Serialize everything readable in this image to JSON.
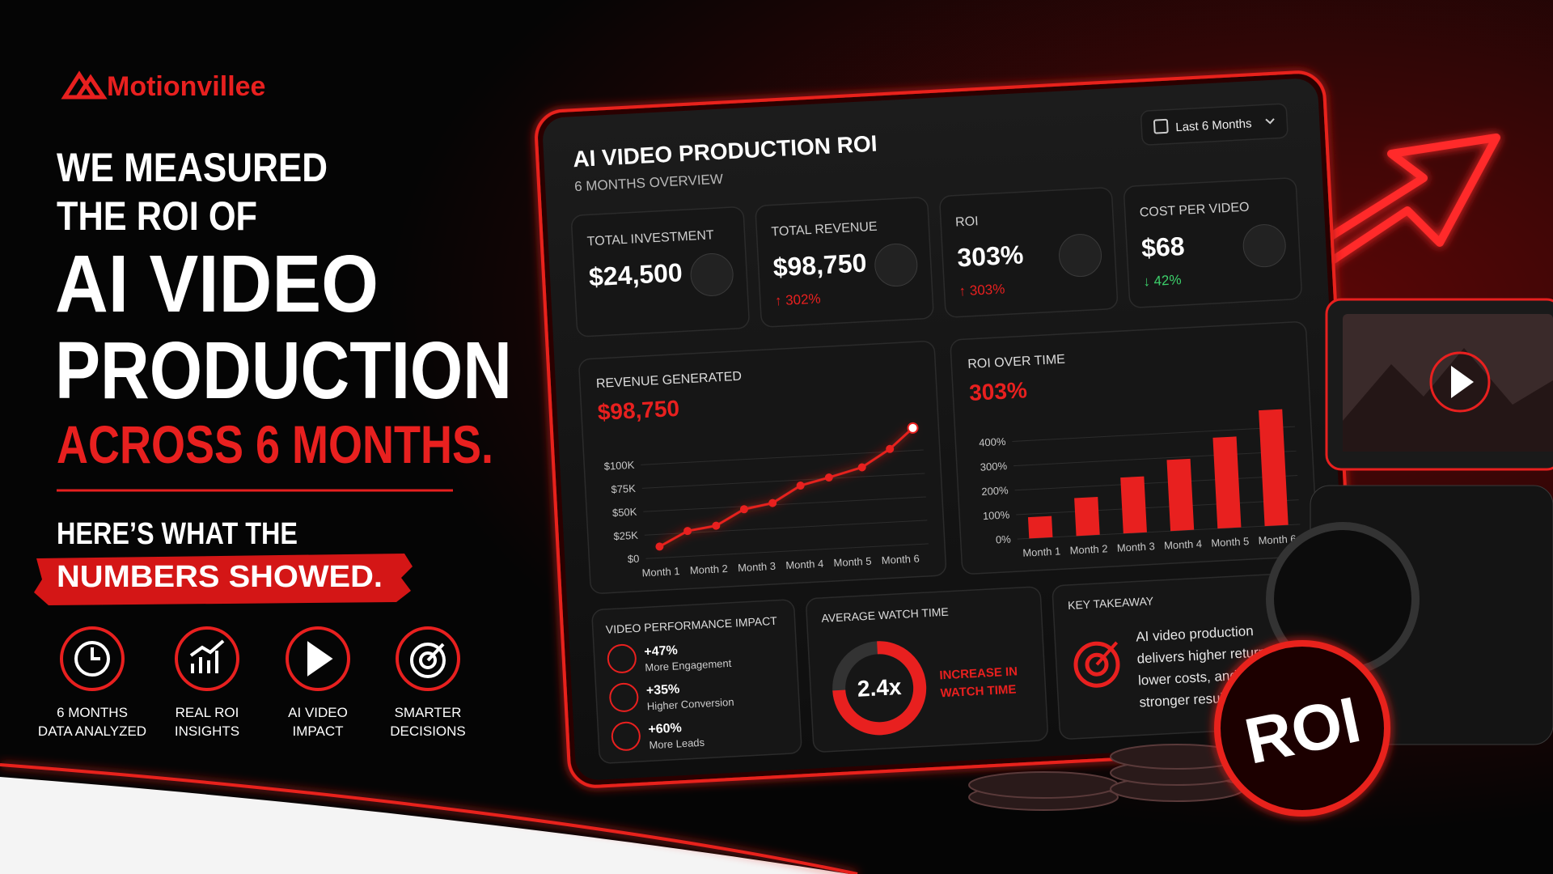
{
  "brand": "Motionvillee",
  "headline": {
    "line1": "WE MEASURED",
    "line2": "THE ROI OF",
    "line3": "AI VIDEO",
    "line4": "PRODUCTION",
    "line5": "ACROSS 6 MONTHS."
  },
  "subhead": {
    "line1": "HERE’S WHAT THE",
    "line2": "NUMBERS SHOWED."
  },
  "features": [
    {
      "line1": "6 MONTHS",
      "line2": "DATA ANALYZED"
    },
    {
      "line1": "REAL ROI",
      "line2": "INSIGHTS"
    },
    {
      "line1": "AI VIDEO",
      "line2": "IMPACT"
    },
    {
      "line1": "SMARTER",
      "line2": "DECISIONS"
    }
  ],
  "dashboard": {
    "title": "AI VIDEO PRODUCTION ROI",
    "subtitle": "6 MONTHS OVERVIEW",
    "period": "Last 6 Months",
    "kpis": [
      {
        "label": "TOTAL INVESTMENT",
        "value": "$24,500"
      },
      {
        "label": "TOTAL REVENUE",
        "value": "$98,750",
        "change": "↑ 302%"
      },
      {
        "label": "ROI",
        "value": "303%",
        "change": "↑ 303%"
      },
      {
        "label": "COST PER VIDEO",
        "value": "$68",
        "change": "↓ 42%"
      }
    ],
    "revenue_chart": {
      "type": "line",
      "title": "REVENUE GENERATED",
      "headline": "$98,750",
      "color": "#e8201f",
      "x": [
        1,
        1.6,
        2.2,
        2.8,
        3.4,
        4,
        4.6,
        5.3,
        5.9,
        6.4
      ],
      "values": [
        12000,
        27000,
        31000,
        47000,
        52000,
        69000,
        76000,
        85000,
        103000,
        124000
      ],
      "xlim": [
        0.7,
        6.6
      ],
      "xticks": [
        {
          "value": 1,
          "label": "Month 1"
        },
        {
          "value": 2,
          "label": "Month 2"
        },
        {
          "value": 3,
          "label": "Month 3"
        },
        {
          "value": 4,
          "label": "Month 4"
        },
        {
          "value": 5,
          "label": "Month 5"
        },
        {
          "value": 6,
          "label": "Month 6"
        }
      ],
      "ylim": [
        0,
        125000
      ],
      "yticks": [
        {
          "value": 0,
          "label": "$0"
        },
        {
          "value": 25000,
          "label": "$25K"
        },
        {
          "value": 50000,
          "label": "$50K"
        },
        {
          "value": 75000,
          "label": "$75K"
        },
        {
          "value": 100000,
          "label": "$100K"
        }
      ]
    },
    "roi_chart": {
      "type": "bar",
      "title": "ROI OVER TIME",
      "headline": "303%",
      "color": "#e8201f",
      "categories": [
        "Month 1",
        "Month 2",
        "Month 3",
        "Month 4",
        "Month 5",
        "Month 6"
      ],
      "values": [
        87,
        155,
        229,
        291,
        372,
        474
      ],
      "ylim": [
        0,
        480
      ],
      "yticks": [
        {
          "value": 0,
          "label": "0%"
        },
        {
          "value": 100,
          "label": "100%"
        },
        {
          "value": 200,
          "label": "200%"
        },
        {
          "value": 300,
          "label": "300%"
        },
        {
          "value": 400,
          "label": "400%"
        }
      ]
    },
    "performance": {
      "title": "VIDEO PERFORMANCE IMPACT",
      "items": [
        {
          "value": "+47%",
          "label": "More Engagement"
        },
        {
          "value": "+35%",
          "label": "Higher Conversion"
        },
        {
          "value": "+60%",
          "label": "More Leads"
        }
      ]
    },
    "watch_time": {
      "title": "AVERAGE WATCH TIME",
      "value": "2.4x",
      "note_line1": "INCREASE IN",
      "note_line2": "WATCH TIME"
    },
    "takeaway": {
      "title": "KEY TAKEAWAY",
      "lines": [
        "AI video production",
        "delivers higher returns,",
        "lower costs, and",
        "stronger results."
      ]
    }
  },
  "coin_label": "ROI"
}
